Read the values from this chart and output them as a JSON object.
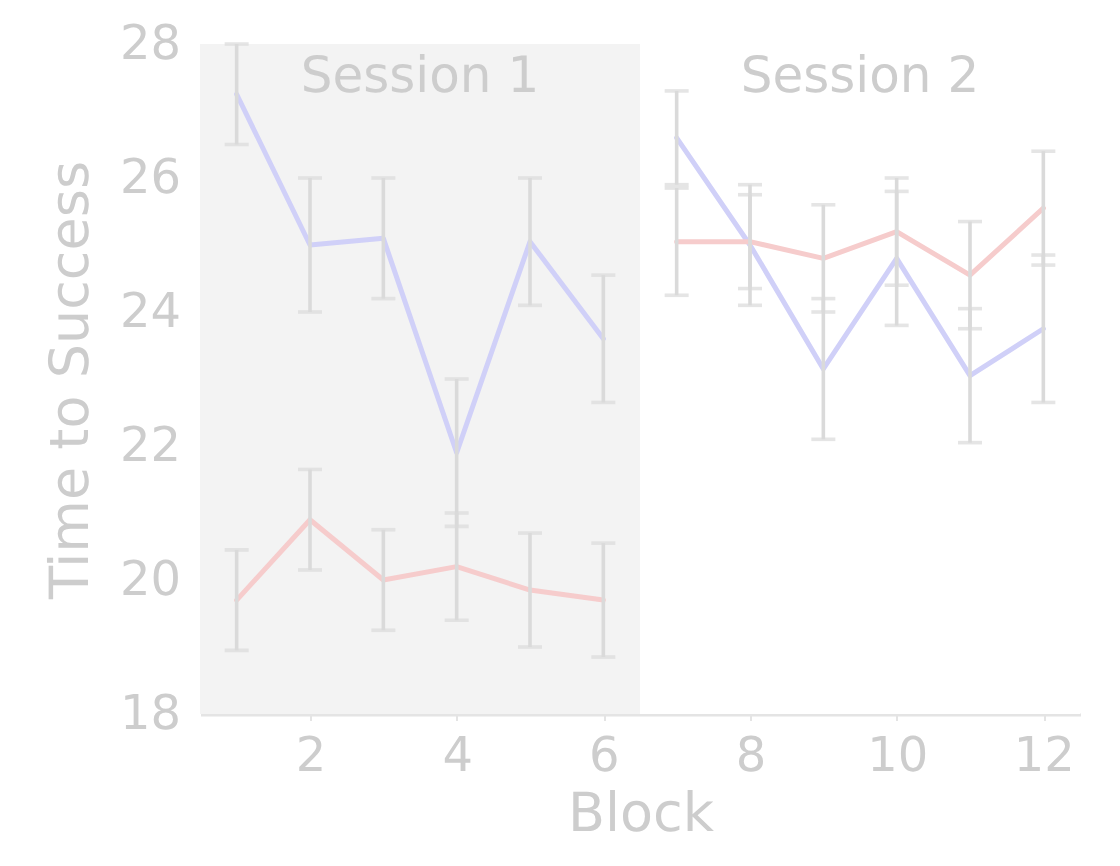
{
  "chart_data": {
    "type": "line",
    "xlabel": "Block",
    "ylabel": "Time to Success",
    "xlim": [
      0.5,
      12.5
    ],
    "ylim": [
      18,
      28
    ],
    "xticks": [
      2,
      4,
      6,
      8,
      10,
      12
    ],
    "yticks": [
      18,
      20,
      22,
      24,
      26,
      28
    ],
    "grid": false,
    "line_style": "solid",
    "bands": [
      {
        "axis": "x",
        "from": 0.5,
        "to": 6.5,
        "label": "Session 1",
        "color": "#f3f3f3"
      },
      {
        "axis": "x",
        "from": 6.5,
        "to": 12.5,
        "label": "Session 2",
        "color": "#ffffff"
      }
    ],
    "series": [
      {
        "color": "#d0d0f8",
        "x": [
          1,
          2,
          3,
          4,
          5,
          6
        ],
        "values": [
          27.25,
          25.0,
          25.1,
          21.9,
          25.05,
          23.6
        ],
        "errors": [
          0.75,
          1.0,
          0.9,
          1.1,
          0.95,
          0.95
        ]
      },
      {
        "color": "#f6cccc",
        "x": [
          1,
          2,
          3,
          4,
          5,
          6
        ],
        "values": [
          19.7,
          20.9,
          20.0,
          20.2,
          19.85,
          19.7
        ],
        "errors": [
          0.75,
          0.75,
          0.75,
          0.8,
          0.85,
          0.85
        ]
      },
      {
        "color": "#d0d0f8",
        "x": [
          7,
          8,
          9,
          10,
          11,
          12
        ],
        "values": [
          26.6,
          25.0,
          23.15,
          24.8,
          23.05,
          23.75
        ],
        "errors": [
          0.7,
          0.9,
          1.05,
          1.0,
          1.0,
          1.1
        ]
      },
      {
        "color": "#f6cccc",
        "x": [
          7,
          8,
          9,
          10,
          11,
          12
        ],
        "values": [
          25.05,
          25.05,
          24.8,
          25.2,
          24.55,
          25.55
        ],
        "errors": [
          0.8,
          0.7,
          0.8,
          0.8,
          0.8,
          0.85
        ]
      }
    ]
  }
}
